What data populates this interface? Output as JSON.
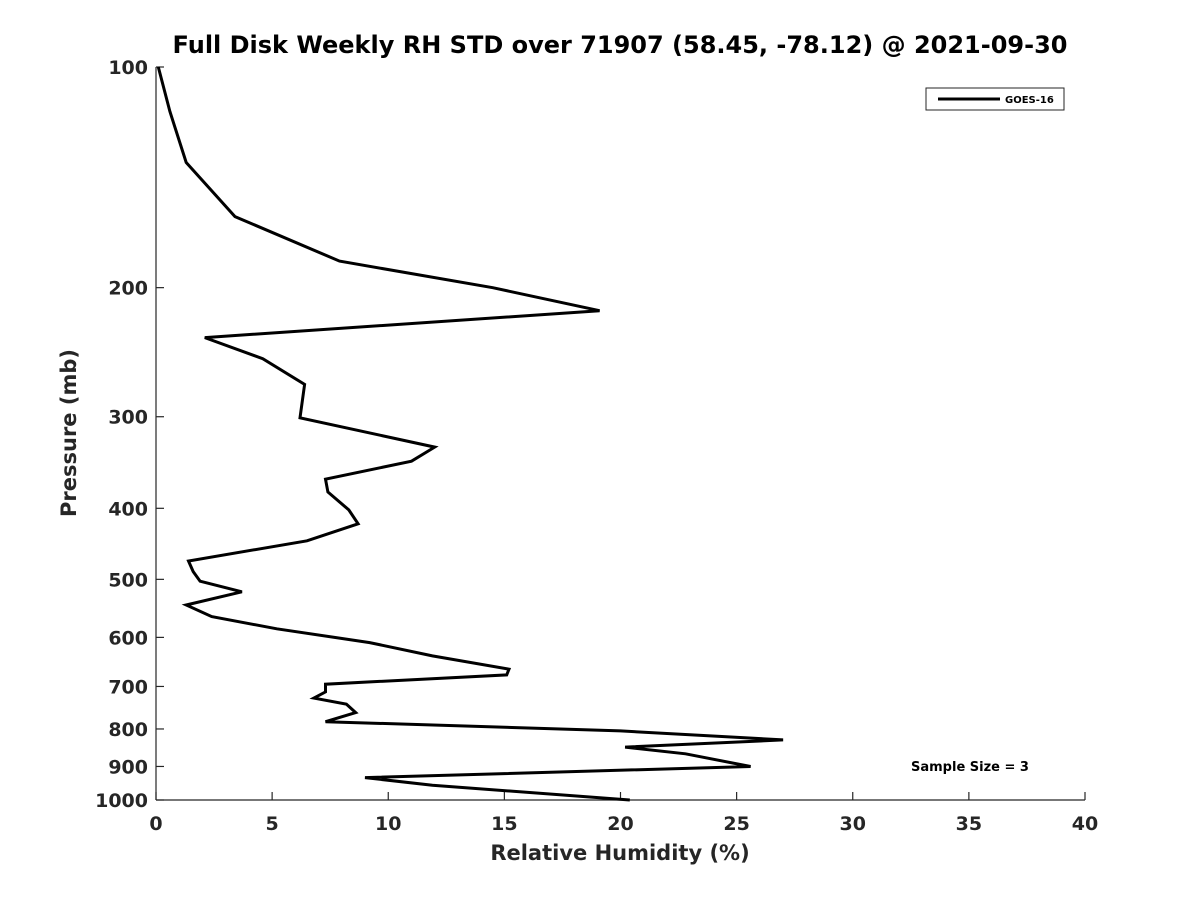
{
  "chart_data": {
    "type": "line",
    "title": "Full Disk Weekly RH STD over 71907 (58.45, -78.12) @ 2021-09-30",
    "xlabel": "Relative Humidity (%)",
    "ylabel": "Pressure (mb)",
    "xlim": [
      0,
      40
    ],
    "ylim": [
      100,
      1000
    ],
    "y_scale": "log",
    "y_reversed": true,
    "x_ticks": [
      0,
      5,
      10,
      15,
      20,
      25,
      30,
      35,
      40
    ],
    "y_ticks": [
      100,
      200,
      300,
      400,
      500,
      600,
      700,
      800,
      900,
      1000
    ],
    "grid": false,
    "legend_position": "top-right",
    "series": [
      {
        "name": "GOES-16",
        "color": "#000000",
        "points": [
          [
            0.1,
            100
          ],
          [
            0.6,
            115
          ],
          [
            1.3,
            135
          ],
          [
            3.4,
            160
          ],
          [
            7.9,
            184
          ],
          [
            14.5,
            200
          ],
          [
            19.1,
            215
          ],
          [
            2.1,
            234
          ],
          [
            4.6,
            250
          ],
          [
            6.4,
            271
          ],
          [
            6.2,
            301
          ],
          [
            12.0,
            330
          ],
          [
            11.0,
            345
          ],
          [
            7.3,
            365
          ],
          [
            7.4,
            380
          ],
          [
            8.3,
            402
          ],
          [
            8.7,
            420
          ],
          [
            6.5,
            443
          ],
          [
            1.4,
            472
          ],
          [
            1.6,
            488
          ],
          [
            1.9,
            503
          ],
          [
            3.7,
            520
          ],
          [
            1.3,
            542
          ],
          [
            2.4,
            562
          ],
          [
            5.2,
            584
          ],
          [
            9.2,
            610
          ],
          [
            11.9,
            636
          ],
          [
            15.2,
            663
          ],
          [
            15.1,
            675
          ],
          [
            7.3,
            695
          ],
          [
            7.3,
            712
          ],
          [
            6.8,
            726
          ],
          [
            8.2,
            740
          ],
          [
            8.6,
            760
          ],
          [
            7.3,
            782
          ],
          [
            20.0,
            805
          ],
          [
            27.0,
            828
          ],
          [
            20.2,
            847
          ],
          [
            22.8,
            865
          ],
          [
            25.6,
            900
          ],
          [
            9.0,
            932
          ],
          [
            11.9,
            955
          ],
          [
            20.4,
            1000
          ]
        ]
      }
    ],
    "annotation": "Sample Size = 3"
  }
}
